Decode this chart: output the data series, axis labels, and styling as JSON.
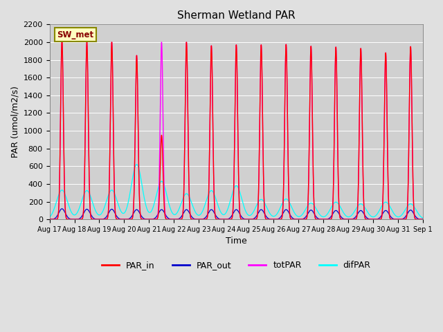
{
  "title": "Sherman Wetland PAR",
  "ylabel": "PAR (umol/m2/s)",
  "xlabel": "Time",
  "station_label": "SW_met",
  "ylim": [
    0,
    2200
  ],
  "yticks": [
    0,
    200,
    400,
    600,
    800,
    1000,
    1200,
    1400,
    1600,
    1800,
    2000,
    2200
  ],
  "num_days": 15,
  "peak_values_in": [
    2020,
    2000,
    2000,
    1850,
    950,
    2000,
    1960,
    1970,
    1970,
    1975,
    1955,
    1945,
    1930,
    1880,
    1950
  ],
  "peak_values_tot": [
    2020,
    2000,
    2000,
    1850,
    2000,
    2000,
    1960,
    1970,
    1970,
    1975,
    1955,
    1945,
    1930,
    1880,
    1950
  ],
  "par_out_peaks": [
    120,
    115,
    115,
    110,
    110,
    110,
    110,
    110,
    110,
    110,
    105,
    100,
    100,
    100,
    105
  ],
  "difpar_peaks": [
    330,
    325,
    330,
    620,
    430,
    290,
    325,
    380,
    225,
    230,
    185,
    195,
    175,
    195,
    175
  ],
  "sigma_in": 0.055,
  "sigma_tot": 0.055,
  "sigma_out": 0.13,
  "sigma_dif": 0.22,
  "colors": {
    "PAR_in": "#ff0000",
    "PAR_out": "#0000cc",
    "totPAR": "#ff00ff",
    "difPAR": "#00ffff",
    "fig_bg": "#e0e0e0",
    "plot_bg": "#d0d0d0",
    "station_box_bg": "#ffffc0",
    "station_box_edge": "#888800",
    "station_text": "#880000",
    "grid": "#ffffff"
  },
  "tick_labels": [
    "Aug 17",
    "Aug 18",
    "Aug 19",
    "Aug 20",
    "Aug 21",
    "Aug 22",
    "Aug 23",
    "Aug 24",
    "Aug 25",
    "Aug 26",
    "Aug 27",
    "Aug 28",
    "Aug 29",
    "Aug 30",
    "Aug 31",
    "Sep 1"
  ]
}
